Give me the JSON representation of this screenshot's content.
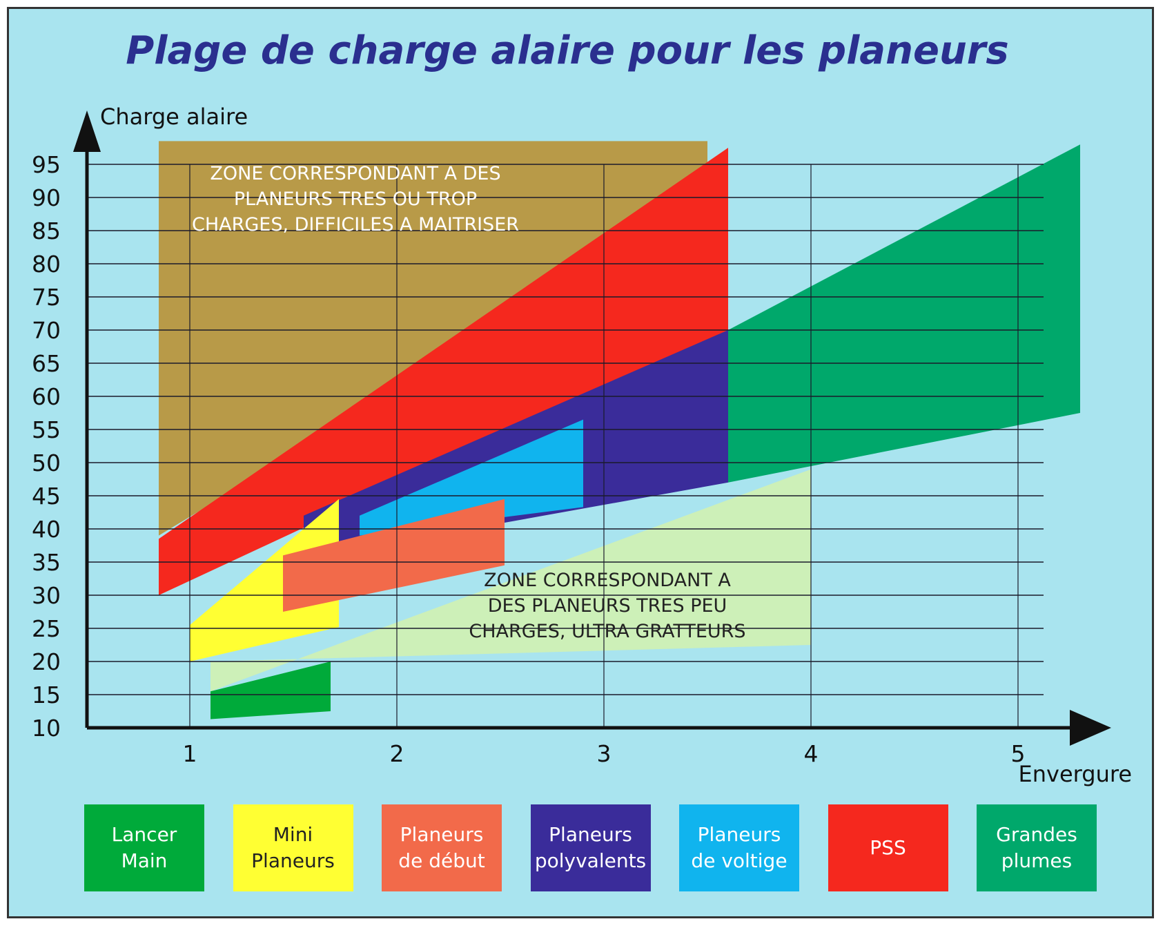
{
  "chart_data": {
    "type": "area",
    "title": "Plage de charge alaire pour les planeurs",
    "xlabel": "Envergure",
    "ylabel": "Charge alaire",
    "x_ticks": [
      1,
      2,
      3,
      4,
      5
    ],
    "y_ticks": [
      10,
      15,
      20,
      25,
      30,
      35,
      40,
      45,
      50,
      55,
      60,
      65,
      70,
      75,
      80,
      85,
      90,
      95
    ],
    "xlim": [
      0.5,
      5.5
    ],
    "ylim": [
      10,
      95
    ],
    "grid": true,
    "legend_placement": "bottom",
    "annotations": {
      "heavy_zone": "ZONE CORRESPONDANT A DES\nPLANEURS TRES OU TROP\nCHARGES, DIFFICILES A MAITRISER",
      "light_zone": "ZONE CORRESPONDANT A\nDES PLANEURS TRES PEU\nCHARGES, ULTRA GRATTEURS"
    },
    "zones": [
      {
        "name": "heavy-zone",
        "color": "#b89a48",
        "polygon": [
          [
            0.85,
            98.5
          ],
          [
            3.5,
            98.5
          ],
          [
            3.5,
            89
          ],
          [
            0.85,
            39
          ]
        ]
      },
      {
        "name": "light-zone",
        "color": "#cdf0b8",
        "polygon": [
          [
            1.1,
            20
          ],
          [
            1.1,
            15.5
          ],
          [
            4.0,
            49
          ],
          [
            4.0,
            22.5
          ]
        ]
      }
    ],
    "series": [
      {
        "name": "Grandes plumes",
        "color": "#00a86b",
        "polygon": [
          [
            3.6,
            70
          ],
          [
            5.3,
            98
          ],
          [
            5.3,
            57.5
          ],
          [
            3.6,
            47
          ]
        ]
      },
      {
        "name": "PSS",
        "color": "#f5281e",
        "polygon": [
          [
            0.85,
            38.5
          ],
          [
            3.6,
            97.5
          ],
          [
            3.6,
            70
          ],
          [
            0.85,
            30
          ]
        ]
      },
      {
        "name": "Planeurs polyvalents",
        "color": "#3a2c9a",
        "polygon": [
          [
            1.55,
            42
          ],
          [
            3.6,
            70
          ],
          [
            3.6,
            47
          ],
          [
            1.55,
            35.5
          ]
        ]
      },
      {
        "name": "Planeurs de voltige",
        "color": "#10b4ee",
        "polygon": [
          [
            1.82,
            42
          ],
          [
            2.9,
            56.5
          ],
          [
            2.9,
            43.3
          ],
          [
            1.82,
            39
          ]
        ]
      },
      {
        "name": "Mini Planeurs",
        "color": "#ffff33",
        "polygon": [
          [
            1.0,
            25.5
          ],
          [
            1.72,
            44.5
          ],
          [
            1.72,
            25.2
          ],
          [
            1.0,
            20
          ]
        ]
      },
      {
        "name": "Planeurs de début",
        "color": "#f26a4a",
        "polygon": [
          [
            1.45,
            36
          ],
          [
            2.52,
            44.5
          ],
          [
            2.52,
            34.5
          ],
          [
            1.45,
            27.5
          ]
        ]
      },
      {
        "name": "Lancer Main",
        "color": "#00aa3a",
        "polygon": [
          [
            1.1,
            15.5
          ],
          [
            1.68,
            20
          ],
          [
            1.68,
            12.5
          ],
          [
            1.1,
            11.3
          ]
        ]
      }
    ]
  },
  "legend": [
    {
      "label": "Lancer\nMain",
      "color": "#00aa3a",
      "text_color": "#ffffff"
    },
    {
      "label": "Mini\nPlaneurs",
      "color": "#ffff33",
      "text_color": "#222222"
    },
    {
      "label": "Planeurs\nde début",
      "color": "#f26a4a",
      "text_color": "#ffffff"
    },
    {
      "label": "Planeurs\npolyvalents",
      "color": "#3a2c9a",
      "text_color": "#ffffff"
    },
    {
      "label": "Planeurs\nde voltige",
      "color": "#10b4ee",
      "text_color": "#ffffff"
    },
    {
      "label": "PSS",
      "color": "#f5281e",
      "text_color": "#ffffff"
    },
    {
      "label": "Grandes\nplumes",
      "color": "#00a86b",
      "text_color": "#ffffff"
    }
  ]
}
